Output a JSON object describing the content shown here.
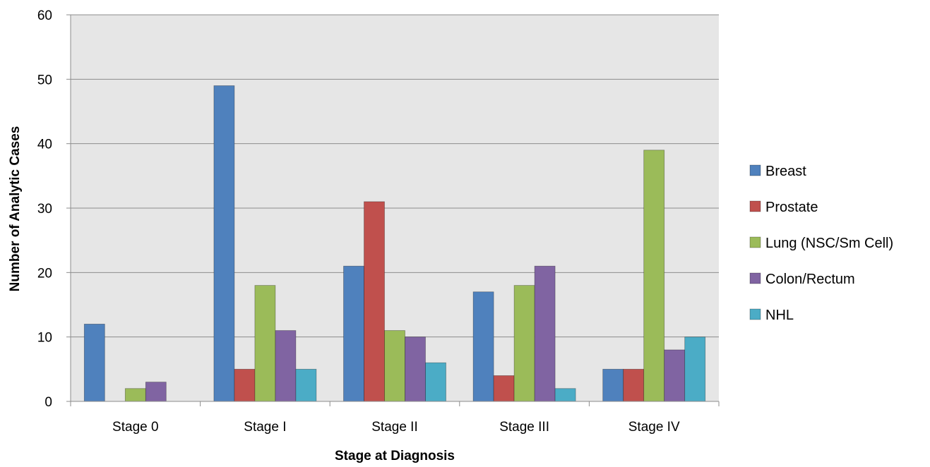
{
  "chart_data": {
    "type": "bar",
    "title": "",
    "xlabel": "Stage at Diagnosis",
    "ylabel": "Number of Analytic Cases",
    "ylim": [
      0,
      60
    ],
    "yticks": [
      0,
      10,
      20,
      30,
      40,
      50,
      60
    ],
    "grid": true,
    "legend_position": "right",
    "plot_background": "#e6e6e6",
    "gridline_color": "#8c8c8c",
    "categories": [
      "Stage 0",
      "Stage I",
      "Stage II",
      "Stage III",
      "Stage IV"
    ],
    "series": [
      {
        "name": "Breast",
        "color": "#4f81bd",
        "values": [
          12,
          49,
          21,
          17,
          5
        ]
      },
      {
        "name": "Prostate",
        "color": "#c0504d",
        "values": [
          0,
          5,
          31,
          4,
          5
        ]
      },
      {
        "name": "Lung (NSC/Sm Cell)",
        "color": "#9bbb59",
        "values": [
          2,
          18,
          11,
          18,
          39
        ]
      },
      {
        "name": "Colon/Rectum",
        "color": "#8064a2",
        "values": [
          3,
          11,
          10,
          21,
          8
        ]
      },
      {
        "name": "NHL",
        "color": "#4bacc6",
        "values": [
          0,
          5,
          6,
          2,
          10
        ]
      }
    ]
  }
}
